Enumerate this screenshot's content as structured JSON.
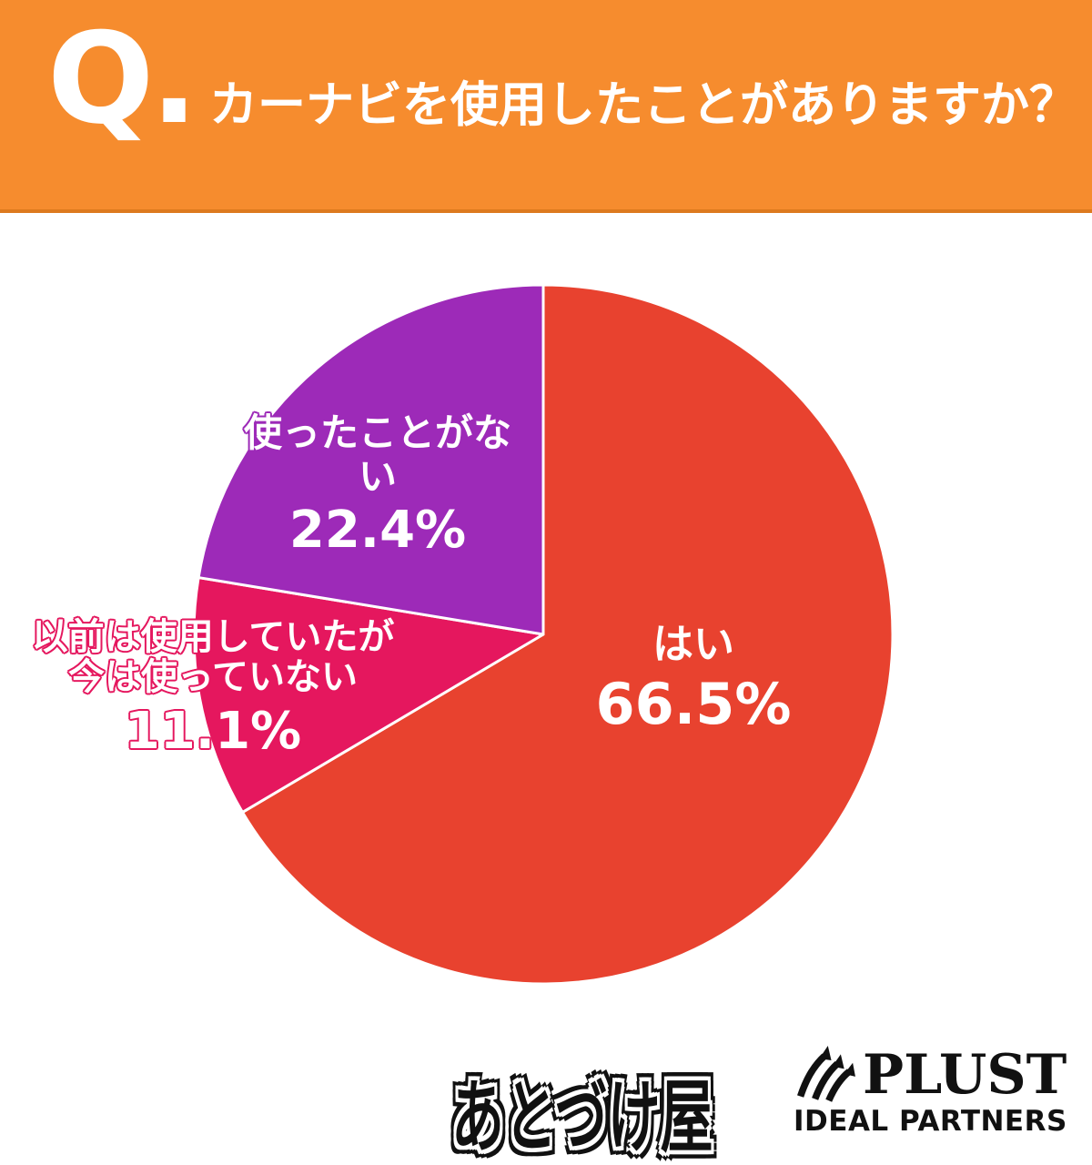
{
  "header": {
    "q_label": "Q.",
    "question": "カーナビを使用したことがありますか？",
    "bg_color": "#F68C2E",
    "border_color": "#DD7A1E",
    "text_color": "#FFFFFF"
  },
  "chart_data": {
    "type": "pie",
    "title": "カーナビを使用したことがありますか？",
    "start_angle_deg": 0,
    "direction": "clockwise",
    "divider_color": "#FFFFFF",
    "slices": [
      {
        "label": "はい",
        "label_lines": [
          "はい"
        ],
        "value": 66.5,
        "display": "66.5%",
        "color": "#E8422F"
      },
      {
        "label": "以前は使用していたが今は使っていない",
        "label_lines": [
          "以前は使用していたが",
          "今は使っていない"
        ],
        "value": 11.1,
        "display": "11.1%",
        "color": "#E5175E"
      },
      {
        "label": "使ったことがない",
        "label_lines": [
          "使ったことがない"
        ],
        "value": 22.4,
        "display": "22.4%",
        "color": "#9D2AB8"
      }
    ]
  },
  "footer": {
    "logo1": "あとづけ屋",
    "logo2_name": "PLUST",
    "logo2_sub": "IDEAL PARTNERS",
    "logo_color": "#111111"
  }
}
